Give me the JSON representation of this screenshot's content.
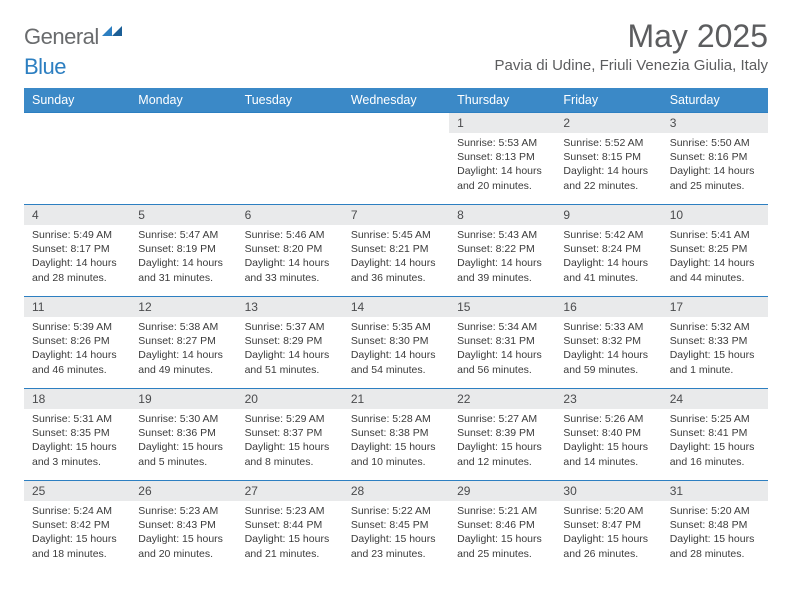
{
  "brand": {
    "part1": "General",
    "part2": "Blue"
  },
  "title": "May 2025",
  "location": "Pavia di Udine, Friuli Venezia Giulia, Italy",
  "colors": {
    "header_bg": "#3b89c7",
    "header_text": "#ffffff",
    "daynum_bg": "#e9eaeb",
    "rule": "#2d7fc1",
    "title_color": "#5c5d5f",
    "logo_gray": "#696b6d",
    "logo_blue": "#2d7fc1"
  },
  "daysOfWeek": [
    "Sunday",
    "Monday",
    "Tuesday",
    "Wednesday",
    "Thursday",
    "Friday",
    "Saturday"
  ],
  "weeks": [
    [
      null,
      null,
      null,
      null,
      {
        "n": "1",
        "sr": "5:53 AM",
        "ss": "8:13 PM",
        "dl": "14 hours and 20 minutes."
      },
      {
        "n": "2",
        "sr": "5:52 AM",
        "ss": "8:15 PM",
        "dl": "14 hours and 22 minutes."
      },
      {
        "n": "3",
        "sr": "5:50 AM",
        "ss": "8:16 PM",
        "dl": "14 hours and 25 minutes."
      }
    ],
    [
      {
        "n": "4",
        "sr": "5:49 AM",
        "ss": "8:17 PM",
        "dl": "14 hours and 28 minutes."
      },
      {
        "n": "5",
        "sr": "5:47 AM",
        "ss": "8:19 PM",
        "dl": "14 hours and 31 minutes."
      },
      {
        "n": "6",
        "sr": "5:46 AM",
        "ss": "8:20 PM",
        "dl": "14 hours and 33 minutes."
      },
      {
        "n": "7",
        "sr": "5:45 AM",
        "ss": "8:21 PM",
        "dl": "14 hours and 36 minutes."
      },
      {
        "n": "8",
        "sr": "5:43 AM",
        "ss": "8:22 PM",
        "dl": "14 hours and 39 minutes."
      },
      {
        "n": "9",
        "sr": "5:42 AM",
        "ss": "8:24 PM",
        "dl": "14 hours and 41 minutes."
      },
      {
        "n": "10",
        "sr": "5:41 AM",
        "ss": "8:25 PM",
        "dl": "14 hours and 44 minutes."
      }
    ],
    [
      {
        "n": "11",
        "sr": "5:39 AM",
        "ss": "8:26 PM",
        "dl": "14 hours and 46 minutes."
      },
      {
        "n": "12",
        "sr": "5:38 AM",
        "ss": "8:27 PM",
        "dl": "14 hours and 49 minutes."
      },
      {
        "n": "13",
        "sr": "5:37 AM",
        "ss": "8:29 PM",
        "dl": "14 hours and 51 minutes."
      },
      {
        "n": "14",
        "sr": "5:35 AM",
        "ss": "8:30 PM",
        "dl": "14 hours and 54 minutes."
      },
      {
        "n": "15",
        "sr": "5:34 AM",
        "ss": "8:31 PM",
        "dl": "14 hours and 56 minutes."
      },
      {
        "n": "16",
        "sr": "5:33 AM",
        "ss": "8:32 PM",
        "dl": "14 hours and 59 minutes."
      },
      {
        "n": "17",
        "sr": "5:32 AM",
        "ss": "8:33 PM",
        "dl": "15 hours and 1 minute."
      }
    ],
    [
      {
        "n": "18",
        "sr": "5:31 AM",
        "ss": "8:35 PM",
        "dl": "15 hours and 3 minutes."
      },
      {
        "n": "19",
        "sr": "5:30 AM",
        "ss": "8:36 PM",
        "dl": "15 hours and 5 minutes."
      },
      {
        "n": "20",
        "sr": "5:29 AM",
        "ss": "8:37 PM",
        "dl": "15 hours and 8 minutes."
      },
      {
        "n": "21",
        "sr": "5:28 AM",
        "ss": "8:38 PM",
        "dl": "15 hours and 10 minutes."
      },
      {
        "n": "22",
        "sr": "5:27 AM",
        "ss": "8:39 PM",
        "dl": "15 hours and 12 minutes."
      },
      {
        "n": "23",
        "sr": "5:26 AM",
        "ss": "8:40 PM",
        "dl": "15 hours and 14 minutes."
      },
      {
        "n": "24",
        "sr": "5:25 AM",
        "ss": "8:41 PM",
        "dl": "15 hours and 16 minutes."
      }
    ],
    [
      {
        "n": "25",
        "sr": "5:24 AM",
        "ss": "8:42 PM",
        "dl": "15 hours and 18 minutes."
      },
      {
        "n": "26",
        "sr": "5:23 AM",
        "ss": "8:43 PM",
        "dl": "15 hours and 20 minutes."
      },
      {
        "n": "27",
        "sr": "5:23 AM",
        "ss": "8:44 PM",
        "dl": "15 hours and 21 minutes."
      },
      {
        "n": "28",
        "sr": "5:22 AM",
        "ss": "8:45 PM",
        "dl": "15 hours and 23 minutes."
      },
      {
        "n": "29",
        "sr": "5:21 AM",
        "ss": "8:46 PM",
        "dl": "15 hours and 25 minutes."
      },
      {
        "n": "30",
        "sr": "5:20 AM",
        "ss": "8:47 PM",
        "dl": "15 hours and 26 minutes."
      },
      {
        "n": "31",
        "sr": "5:20 AM",
        "ss": "8:48 PM",
        "dl": "15 hours and 28 minutes."
      }
    ]
  ],
  "labels": {
    "sunrise": "Sunrise: ",
    "sunset": "Sunset: ",
    "daylight": "Daylight: "
  }
}
